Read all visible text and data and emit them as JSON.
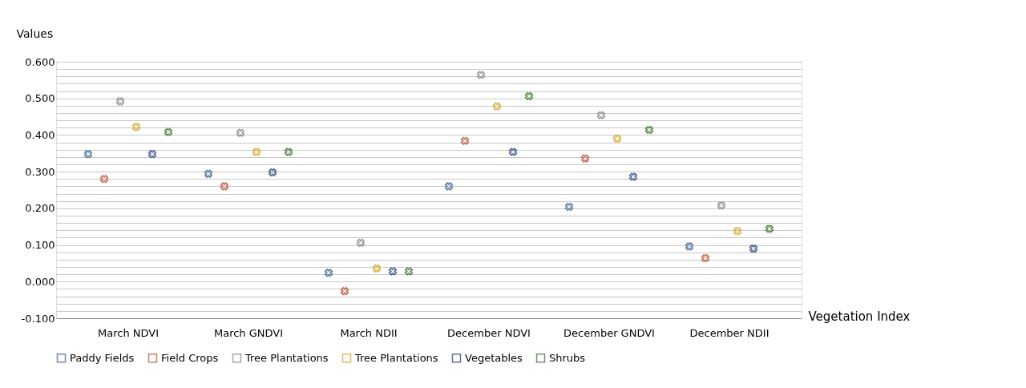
{
  "chart_data": {
    "type": "scatter",
    "xlabel": "Vegetation Index",
    "ylabel": "Values",
    "categories": [
      "March NDVI",
      "March GNDVI",
      "March NDII",
      "December NDVI",
      "December GNDVI",
      "December NDII"
    ],
    "series": [
      {
        "name": "Paddy Fields",
        "color": "#2f5b8a",
        "values": [
          0.348,
          0.294,
          0.024,
          0.26,
          0.204,
          0.096
        ]
      },
      {
        "name": "Field Crops",
        "color": "#b5452a",
        "values": [
          0.28,
          0.26,
          -0.026,
          0.384,
          0.336,
          0.064
        ]
      },
      {
        "name": "Tree Plantations",
        "color": "#7f7f7f",
        "values": [
          0.492,
          0.406,
          0.106,
          0.564,
          0.454,
          0.208
        ]
      },
      {
        "name": "Tree Plantations",
        "color": "#d4a017",
        "values": [
          0.422,
          0.354,
          0.036,
          0.478,
          0.39,
          0.138
        ]
      },
      {
        "name": "Vegetables",
        "color": "#1f3a7a",
        "values": [
          0.348,
          0.298,
          0.028,
          0.354,
          0.286,
          0.09
        ]
      },
      {
        "name": "Shrubs",
        "color": "#2e6b1f",
        "values": [
          0.408,
          0.354,
          0.028,
          0.506,
          0.414,
          0.144
        ]
      }
    ],
    "ylim": [
      -0.1,
      0.6
    ],
    "yticks": [
      {
        "value": -0.1,
        "label": "-0.100"
      },
      {
        "value": -0.08,
        "label": null
      },
      {
        "value": -0.06,
        "label": null
      },
      {
        "value": -0.04,
        "label": null
      },
      {
        "value": -0.02,
        "label": null
      },
      {
        "value": 0,
        "label": "0.000"
      },
      {
        "value": 0.02,
        "label": null
      },
      {
        "value": 0.04,
        "label": null
      },
      {
        "value": 0.06,
        "label": null
      },
      {
        "value": 0.08,
        "label": null
      },
      {
        "value": 0.1,
        "label": "0.100"
      },
      {
        "value": 0.12,
        "label": null
      },
      {
        "value": 0.14,
        "label": null
      },
      {
        "value": 0.16,
        "label": null
      },
      {
        "value": 0.18,
        "label": null
      },
      {
        "value": 0.2,
        "label": "0.200"
      },
      {
        "value": 0.22,
        "label": null
      },
      {
        "value": 0.24,
        "label": null
      },
      {
        "value": 0.26,
        "label": null
      },
      {
        "value": 0.28,
        "label": null
      },
      {
        "value": 0.3,
        "label": "0.300"
      },
      {
        "value": 0.32,
        "label": null
      },
      {
        "value": 0.34,
        "label": null
      },
      {
        "value": 0.36,
        "label": null
      },
      {
        "value": 0.38,
        "label": null
      },
      {
        "value": 0.4,
        "label": "0.400"
      },
      {
        "value": 0.42,
        "label": null
      },
      {
        "value": 0.44,
        "label": null
      },
      {
        "value": 0.46,
        "label": null
      },
      {
        "value": 0.48,
        "label": null
      },
      {
        "value": 0.5,
        "label": "0.500"
      },
      {
        "value": 0.52,
        "label": null
      },
      {
        "value": 0.54,
        "label": null
      },
      {
        "value": 0.56,
        "label": null
      },
      {
        "value": 0.58,
        "label": null
      },
      {
        "value": 0.6,
        "label": "0.600"
      }
    ],
    "grid": "y",
    "legend": "bottom",
    "marker": "cross"
  }
}
